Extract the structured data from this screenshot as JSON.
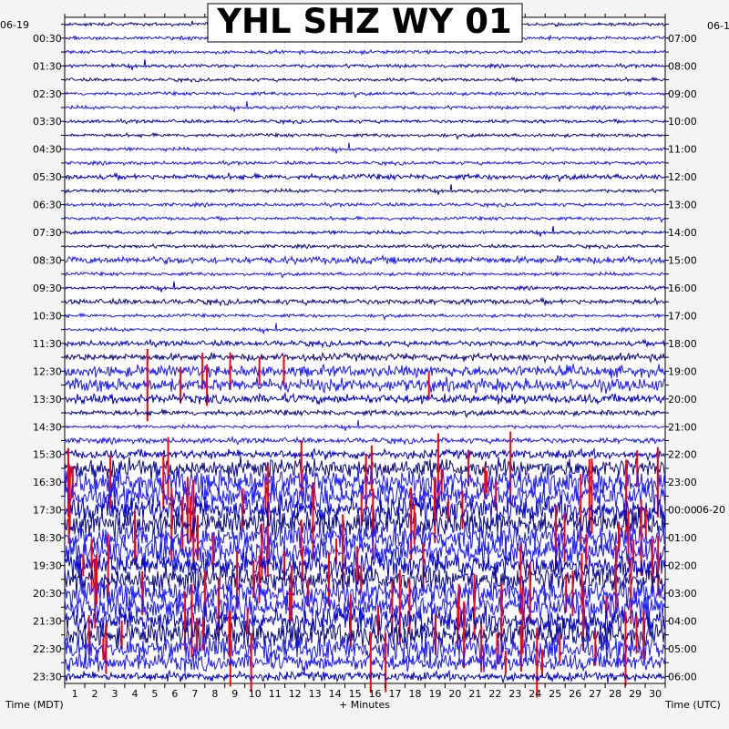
{
  "chart_data": {
    "type": "line",
    "title": "YHL SHZ WY 01",
    "xlabel": "+ Minutes",
    "left_axis_label": "Time (MDT)",
    "right_axis_label": "Time (UTC)",
    "left_date": "06-19",
    "right_date": "06-1",
    "midnight_date": "06-20",
    "x_range": [
      0,
      30
    ],
    "x_ticks": [
      "1",
      "2",
      "3",
      "4",
      "5",
      "6",
      "7",
      "8",
      "9",
      "10",
      "11",
      "12",
      "13",
      "14",
      "15",
      "16",
      "17",
      "18",
      "19",
      "20",
      "21",
      "22",
      "23",
      "24",
      "25",
      "26",
      "27",
      "28",
      "29",
      "30"
    ],
    "left_time_labels": [
      "00:30",
      "01:30",
      "02:30",
      "03:30",
      "04:30",
      "05:30",
      "06:30",
      "07:30",
      "08:30",
      "09:30",
      "10:30",
      "11:30",
      "12:30",
      "13:30",
      "14:30",
      "15:30",
      "16:30",
      "17:30",
      "18:30",
      "19:30",
      "20:30",
      "21:30",
      "22:30",
      "23:30"
    ],
    "right_time_labels": [
      "07:00",
      "08:00",
      "09:00",
      "10:00",
      "11:00",
      "12:00",
      "13:00",
      "14:00",
      "15:00",
      "16:00",
      "17:00",
      "18:00",
      "19:00",
      "20:00",
      "21:00",
      "22:00",
      "23:00",
      "00:00",
      "01:00",
      "02:00",
      "03:00",
      "04:00",
      "05:00",
      "06:00"
    ],
    "trace_colors": [
      "#0a0a8c",
      "#1a1aff",
      "#1a1aff",
      "#0000cc"
    ],
    "clip_color": "#ff0000",
    "rows": 48,
    "activity_note_levels": [
      1,
      1,
      1,
      1,
      1,
      1,
      1,
      1,
      1,
      1,
      1,
      2,
      1,
      1,
      1,
      1,
      1,
      3,
      1,
      1,
      2,
      1,
      1,
      2,
      3,
      5,
      6,
      4,
      2,
      1,
      2,
      4,
      9,
      12,
      12,
      12,
      12,
      12,
      12,
      12,
      12,
      12,
      12,
      12,
      12,
      12,
      8,
      4
    ]
  }
}
